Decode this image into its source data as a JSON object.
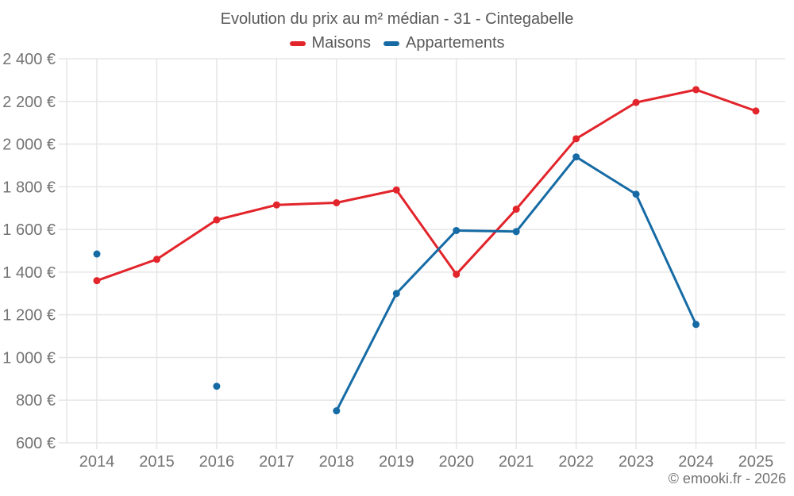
{
  "title": "Evolution du prix au m² médian - 31 - Cintegabelle",
  "footer": {
    "credit": "© emooki.fr - 2026"
  },
  "colors": {
    "grid": "#e6e6e6",
    "axis_text": "#737373",
    "title_text": "#595959",
    "maisons": "#e2242b",
    "appartements": "#166ba5"
  },
  "chart_data": {
    "type": "line",
    "title": "Evolution du prix au m² médian - 31 - Cintegabelle",
    "x": [
      "2014",
      "2015",
      "2016",
      "2017",
      "2018",
      "2019",
      "2020",
      "2021",
      "2022",
      "2023",
      "2024",
      "2025"
    ],
    "series": [
      {
        "name": "Maisons",
        "color": "#e2242b",
        "values": [
          1360,
          1460,
          1645,
          1715,
          1725,
          1785,
          1390,
          1695,
          2025,
          2195,
          2255,
          2155
        ]
      },
      {
        "name": "Appartements",
        "color": "#166ba5",
        "values": [
          1485,
          null,
          865,
          null,
          750,
          1300,
          1595,
          1590,
          1940,
          1765,
          1155,
          null
        ]
      }
    ],
    "ylim": [
      600,
      2400
    ],
    "yticks": [
      {
        "value": 600,
        "label": "600 €"
      },
      {
        "value": 800,
        "label": "800 €"
      },
      {
        "value": 1000,
        "label": "1 000 €"
      },
      {
        "value": 1200,
        "label": "1 200 €"
      },
      {
        "value": 1400,
        "label": "1 400 €"
      },
      {
        "value": 1600,
        "label": "1 600 €"
      },
      {
        "value": 1800,
        "label": "1 800 €"
      },
      {
        "value": 2000,
        "label": "2 000 €"
      },
      {
        "value": 2200,
        "label": "2 200 €"
      },
      {
        "value": 2400,
        "label": "2 400 €"
      }
    ],
    "grid": true,
    "legend_position": "top",
    "unit": "€"
  }
}
